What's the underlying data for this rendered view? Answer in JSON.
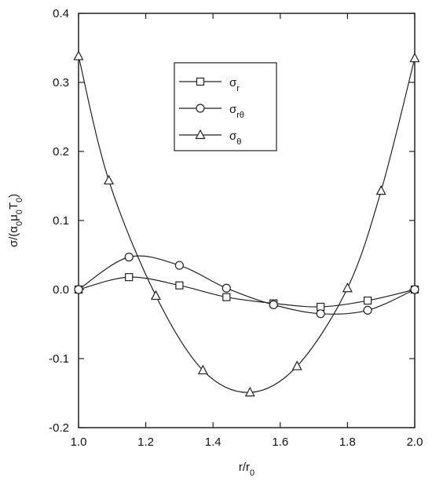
{
  "chart_data": {
    "type": "line",
    "x_label": "r/r0",
    "y_label": "σ/(α0μ0T0)",
    "xlim": [
      1.0,
      2.0
    ],
    "ylim": [
      -0.2,
      0.4
    ],
    "xticks": [
      {
        "value": 1,
        "label": "1.0"
      },
      {
        "value": 1.2,
        "label": "1.2"
      },
      {
        "value": 1.4,
        "label": "1.4"
      },
      {
        "value": 1.6,
        "label": "1.6"
      },
      {
        "value": 1.8,
        "label": "1.8"
      },
      {
        "value": 2,
        "label": "2.0"
      }
    ],
    "yticks": [
      -0.2,
      -0.1,
      {
        "value": 0,
        "label": "0.0"
      },
      0.1,
      0.2,
      0.3,
      0.4
    ],
    "legend_position": "upper center",
    "series": [
      {
        "name": "σr",
        "marker": "square",
        "color": "#222222",
        "x": [
          1.0,
          1.15,
          1.3,
          1.44,
          1.58,
          1.72,
          1.86,
          2.0
        ],
        "values": [
          0.0,
          0.018,
          0.006,
          -0.011,
          -0.02,
          -0.025,
          -0.016,
          0.0
        ]
      },
      {
        "name": "σrθ",
        "marker": "circle",
        "color": "#222222",
        "x": [
          1.0,
          1.15,
          1.3,
          1.44,
          1.58,
          1.72,
          1.86,
          2.0
        ],
        "values": [
          0.0,
          0.047,
          0.035,
          0.002,
          -0.022,
          -0.035,
          -0.03,
          0.0
        ]
      },
      {
        "name": "σθ",
        "marker": "triangle",
        "color": "#222222",
        "x": [
          1.0,
          1.09,
          1.23,
          1.37,
          1.51,
          1.65,
          1.8,
          1.9,
          2.0
        ],
        "values": [
          0.338,
          0.158,
          -0.009,
          -0.117,
          -0.149,
          -0.111,
          0.002,
          0.143,
          0.335
        ]
      }
    ]
  }
}
